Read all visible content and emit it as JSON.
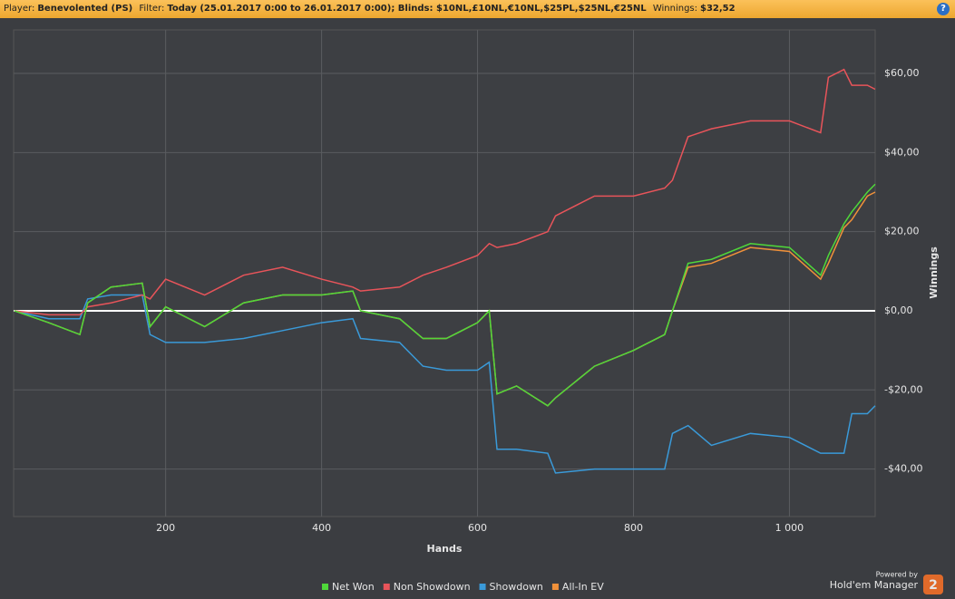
{
  "header": {
    "player_label": "Player:",
    "player": "Benevolented (PS)",
    "filter_label": "Filter:",
    "filter": "Today (25.01.2017 0:00 to 26.01.2017 0:00); Blinds: $10NL,£10NL,€10NL,$25PL,$25NL,€25NL",
    "winnings_label": "Winnings:",
    "winnings": "$32,52",
    "help": "?"
  },
  "chart_data": {
    "type": "line",
    "x_label": "Hands",
    "y_label": "Winnings",
    "x": [
      6,
      50,
      90,
      100,
      130,
      170,
      180,
      200,
      250,
      300,
      350,
      400,
      440,
      450,
      500,
      530,
      560,
      600,
      615,
      625,
      650,
      690,
      700,
      750,
      800,
      840,
      850,
      870,
      900,
      950,
      1000,
      1040,
      1050,
      1070,
      1080,
      1100,
      1110
    ],
    "series": [
      {
        "name": "Net Won",
        "color": "#4fd83a",
        "values": [
          0,
          -3,
          -6,
          2,
          6,
          7,
          -4,
          1,
          -4,
          2,
          4,
          4,
          5,
          0,
          -2,
          -7,
          -7,
          -3,
          0,
          -21,
          -19,
          -24,
          -22,
          -14,
          -10,
          -6,
          0,
          12,
          13,
          17,
          16,
          9,
          14,
          22,
          25,
          30,
          32
        ]
      },
      {
        "name": "Non Showdown",
        "color": "#e8545a",
        "values": [
          0,
          -1,
          -1,
          1,
          2,
          4,
          3,
          8,
          4,
          9,
          11,
          8,
          6,
          5,
          6,
          9,
          11,
          14,
          17,
          16,
          17,
          20,
          24,
          29,
          29,
          31,
          33,
          44,
          46,
          48,
          48,
          45,
          59,
          61,
          57,
          57,
          56
        ]
      },
      {
        "name": "Showdown",
        "color": "#3a9ad9",
        "values": [
          0,
          -2,
          -2,
          3,
          4,
          4,
          -6,
          -8,
          -8,
          -7,
          -5,
          -3,
          -2,
          -7,
          -8,
          -14,
          -15,
          -15,
          -13,
          -35,
          -35,
          -36,
          -41,
          -40,
          -40,
          -40,
          -31,
          -29,
          -34,
          -31,
          -32,
          -36,
          -36,
          -36,
          -26,
          -26,
          -24
        ]
      },
      {
        "name": "All-In EV",
        "color": "#f0913a",
        "values": [
          0,
          -3,
          -6,
          2,
          6,
          7,
          -4,
          1,
          -4,
          2,
          4,
          4,
          5,
          0,
          -2,
          -7,
          -7,
          -3,
          0,
          -21,
          -19,
          -24,
          -22,
          -14,
          -10,
          -6,
          0,
          11,
          12,
          16,
          15,
          8,
          12,
          21,
          23,
          29,
          30
        ]
      }
    ],
    "xlim": [
      5,
      1110
    ],
    "ylim": [
      -52,
      71
    ],
    "xticks": [
      200,
      400,
      600,
      800,
      {
        "value": 1000,
        "label": "1 000"
      }
    ],
    "yticks": [
      {
        "value": -40,
        "label": "-$40,00"
      },
      {
        "value": -20,
        "label": "-$20,00"
      },
      {
        "value": 0,
        "label": "$0,00"
      },
      {
        "value": 20,
        "label": "$20,00"
      },
      {
        "value": 40,
        "label": "$40,00"
      },
      {
        "value": 60,
        "label": "$60,00"
      }
    ],
    "grid": true,
    "legend": "bottom"
  },
  "branding": {
    "powered": "Powered by",
    "product": "Hold'em Manager",
    "version": "2"
  }
}
